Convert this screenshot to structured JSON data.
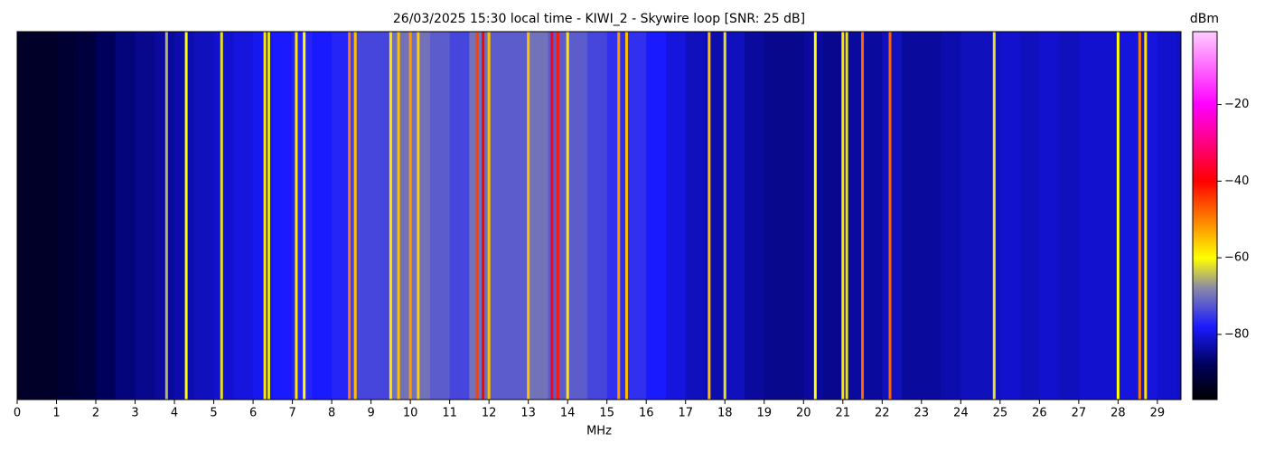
{
  "chart_data": {
    "type": "spectrogram",
    "title": "26/03/2025 15:30 local time - KIWI_2 - Skywire loop [SNR: 25 dB]",
    "xlabel": "MHz",
    "colorbar_label": "dBm",
    "xlim": [
      0,
      29.6
    ],
    "xticks": [
      0,
      1,
      2,
      3,
      4,
      5,
      6,
      7,
      8,
      9,
      10,
      11,
      12,
      13,
      14,
      15,
      16,
      17,
      18,
      19,
      20,
      21,
      22,
      23,
      24,
      25,
      26,
      27,
      28,
      29
    ],
    "clim": [
      -97,
      -1
    ],
    "cticks": [
      {
        "value": -20,
        "label": "−20"
      },
      {
        "value": -40,
        "label": "−40"
      },
      {
        "value": -60,
        "label": "−60"
      },
      {
        "value": -80,
        "label": "−80"
      }
    ],
    "colormap": [
      {
        "value": -97,
        "color": "#000000"
      },
      {
        "value": -88,
        "color": "#00005a"
      },
      {
        "value": -78,
        "color": "#1a1aff"
      },
      {
        "value": -68,
        "color": "#8888aa"
      },
      {
        "value": -60,
        "color": "#ffff00"
      },
      {
        "value": -40,
        "color": "#ff0000"
      },
      {
        "value": -20,
        "color": "#ff00ff"
      },
      {
        "value": -1,
        "color": "#ffccff"
      }
    ],
    "floor_bins": [
      0,
      0.5,
      1,
      1.5,
      2,
      2.5,
      3,
      3.5,
      4,
      4.5,
      5,
      5.5,
      6,
      6.5,
      7,
      7.5,
      8,
      8.5,
      9,
      9.5,
      10,
      10.5,
      11,
      11.5,
      12,
      12.5,
      13,
      13.5,
      14,
      14.5,
      15,
      15.5,
      16,
      16.5,
      17,
      17.5,
      18,
      18.5,
      19,
      19.5,
      20,
      20.5,
      21,
      21.5,
      22,
      22.5,
      23,
      23.5,
      24,
      24.5,
      25,
      25.5,
      26,
      26.5,
      27,
      27.5,
      28,
      28.5,
      29,
      29.5,
      29.6
    ],
    "floor": [
      -93,
      -93,
      -92,
      -91,
      -88,
      -86,
      -85,
      -84,
      -83,
      -82,
      -81,
      -80,
      -79,
      -78,
      -77,
      -78,
      -77,
      -74,
      -74,
      -70,
      -70,
      -72,
      -74,
      -70,
      -72,
      -72,
      -70,
      -72,
      -72,
      -74,
      -76,
      -76,
      -78,
      -80,
      -82,
      -83,
      -82,
      -84,
      -85,
      -85,
      -84,
      -85,
      -84,
      -84,
      -82,
      -84,
      -84,
      -83,
      -82,
      -82,
      -81,
      -82,
      -81,
      -82,
      -81,
      -81,
      -80,
      -80,
      -81,
      -82
    ],
    "signals": {
      "x": [
        3.8,
        4.3,
        5.2,
        6.3,
        6.4,
        7.1,
        7.3,
        8.45,
        8.6,
        9.5,
        9.7,
        10.0,
        10.2,
        11.7,
        11.85,
        12.0,
        13.0,
        13.6,
        13.75,
        14.0,
        15.3,
        15.5,
        17.6,
        18.0,
        20.3,
        21.0,
        21.1,
        21.5,
        22.2,
        24.85,
        28.0,
        28.55,
        28.7
      ],
      "values": [
        -65,
        -60,
        -62,
        -58,
        -62,
        -58,
        -60,
        -50,
        -55,
        -58,
        -55,
        -52,
        -56,
        -45,
        -40,
        -55,
        -55,
        -38,
        -42,
        -58,
        -52,
        -55,
        -55,
        -62,
        -60,
        -58,
        -62,
        -48,
        -48,
        -62,
        -60,
        -50,
        -58
      ]
    }
  }
}
